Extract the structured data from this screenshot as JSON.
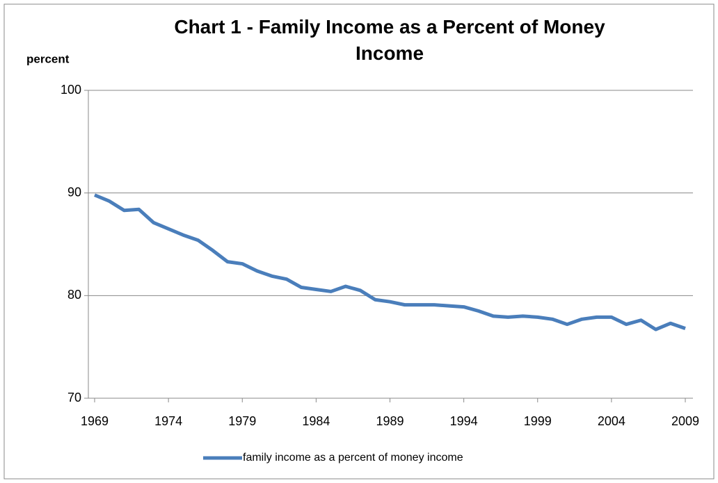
{
  "chart_data": {
    "type": "line",
    "title": "Chart 1 - Family Income as a Percent of Money Income",
    "y_label": "percent",
    "x": [
      1969,
      1970,
      1971,
      1972,
      1973,
      1974,
      1975,
      1976,
      1977,
      1978,
      1979,
      1980,
      1981,
      1982,
      1983,
      1984,
      1985,
      1986,
      1987,
      1988,
      1989,
      1990,
      1991,
      1992,
      1993,
      1994,
      1995,
      1996,
      1997,
      1998,
      1999,
      2000,
      2001,
      2002,
      2003,
      2004,
      2005,
      2006,
      2007,
      2008,
      2009
    ],
    "series": [
      {
        "name": "family income as a percent of money income",
        "color": "#4a7ebb",
        "values": [
          89.8,
          89.2,
          88.3,
          88.4,
          87.1,
          86.5,
          85.9,
          85.4,
          84.4,
          83.3,
          83.1,
          82.4,
          81.9,
          81.6,
          80.8,
          80.6,
          80.4,
          80.9,
          80.5,
          79.6,
          79.4,
          79.1,
          79.1,
          79.1,
          79.0,
          78.9,
          78.5,
          78.0,
          77.9,
          78.0,
          77.9,
          77.7,
          77.2,
          77.7,
          77.9,
          77.9,
          77.2,
          77.6,
          76.7,
          77.3,
          76.8
        ]
      }
    ],
    "xlim": [
      1969,
      2009
    ],
    "xticks": [
      1969,
      1974,
      1979,
      1984,
      1989,
      1994,
      1999,
      2004,
      2009
    ],
    "ylim": [
      70,
      100
    ],
    "yticks": [
      70,
      80,
      90,
      100
    ],
    "grid": true,
    "legend": "bottom"
  }
}
